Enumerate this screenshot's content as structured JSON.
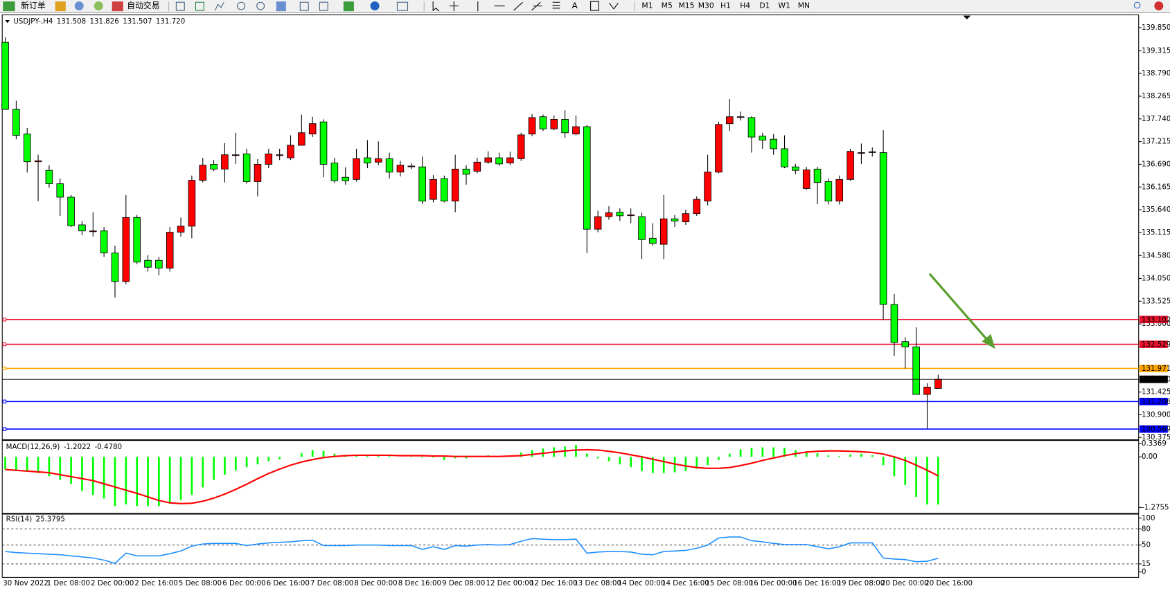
{
  "toolbar": {
    "new_order": "新订单",
    "auto_trading": "自动交易",
    "text_tool": "A",
    "timeframes": [
      "M1",
      "M5",
      "M15",
      "M30",
      "H1",
      "H4",
      "D1",
      "W1",
      "MN"
    ]
  },
  "chart_data": [
    {
      "type": "candlestick",
      "title": "USDJPY-,H4",
      "categories": [
        "30 Nov 2022",
        null,
        null,
        null,
        "1 Dec 08:00",
        null,
        null,
        null,
        "2 Dec 00:00",
        null,
        null,
        null,
        "2 Dec 16:00",
        null,
        null,
        null,
        "5 Dec 08:00",
        null,
        null,
        null,
        "6 Dec 00:00",
        null,
        null,
        null,
        "6 Dec 16:00",
        null,
        null,
        null,
        "7 Dec 08:00",
        null,
        null,
        null,
        "8 Dec 00:00",
        null,
        null,
        null,
        "8 Dec 16:00",
        null,
        null,
        null,
        "9 Dec 08:00",
        null,
        null,
        null,
        "12 Dec 00:00",
        null,
        null,
        null,
        "12 Dec 16:00",
        null,
        null,
        null,
        "13 Dec 08:00",
        null,
        null,
        null,
        "14 Dec 00:00",
        null,
        null,
        null,
        "14 Dec 16:00",
        null,
        null,
        null,
        "15 Dec 08:00",
        null,
        null,
        null,
        "16 Dec 00:00",
        null,
        null,
        null,
        "16 Dec 16:00",
        null,
        null,
        null,
        "19 Dec 08:00",
        null,
        null,
        null,
        "20 Dec 00:00",
        null,
        null,
        null,
        "20 Dec 16:00",
        null
      ],
      "open": [
        139.51,
        137.96,
        137.39,
        136.75,
        136.55,
        136.24,
        135.93,
        135.29,
        135.15,
        135.15,
        134.64,
        133.98,
        135.46,
        134.47,
        134.47,
        134.29,
        135.12,
        135.26,
        136.32,
        136.69,
        136.58,
        136.91,
        136.93,
        136.29,
        136.69,
        136.91,
        136.84,
        137.13,
        137.39,
        137.67,
        136.72,
        136.39,
        136.34,
        136.84,
        136.74,
        136.82,
        136.51,
        136.65,
        136.63,
        135.88,
        136.36,
        135.84,
        136.58,
        136.53,
        136.74,
        136.84,
        136.72,
        136.82,
        137.39,
        137.79,
        137.51,
        137.73,
        137.39,
        137.56,
        135.19,
        135.48,
        135.58,
        135.52,
        135.48,
        134.98,
        134.84,
        135.43,
        135.36,
        135.55,
        135.84,
        136.51,
        137.63,
        137.79,
        137.77,
        137.34,
        137.27,
        137.05,
        136.63,
        136.13,
        136.58,
        136.29,
        135.84,
        136.34,
        136.96,
        136.98,
        136.96,
        133.45,
        132.59,
        132.47,
        131.37,
        131.508
      ],
      "high": [
        139.63,
        138.16,
        137.53,
        136.91,
        136.67,
        136.36,
        135.98,
        135.38,
        135.58,
        135.24,
        134.81,
        135.98,
        135.52,
        134.59,
        134.55,
        135.24,
        135.46,
        136.43,
        136.84,
        136.79,
        137.18,
        137.42,
        137.05,
        136.81,
        137.05,
        137.05,
        137.36,
        137.84,
        137.79,
        137.73,
        136.84,
        136.62,
        137.05,
        137.25,
        137.22,
        136.96,
        136.77,
        136.72,
        136.87,
        136.44,
        136.43,
        136.91,
        136.67,
        136.84,
        136.99,
        136.96,
        136.98,
        137.42,
        137.85,
        137.84,
        137.82,
        137.94,
        137.82,
        137.6,
        135.62,
        135.72,
        135.67,
        135.67,
        135.57,
        135.33,
        135.98,
        135.52,
        135.64,
        135.95,
        136.91,
        137.67,
        138.2,
        137.91,
        137.8,
        137.42,
        137.39,
        137.36,
        136.7,
        136.63,
        136.63,
        136.36,
        136.43,
        137.05,
        137.17,
        137.08,
        137.48,
        133.69,
        132.69,
        132.92,
        131.63,
        131.826
      ],
      "low": [
        137.96,
        137.27,
        136.5,
        135.84,
        136.15,
        135.5,
        135.24,
        135.05,
        135.02,
        134.55,
        133.61,
        133.92,
        134.38,
        134.21,
        134.12,
        134.21,
        135.02,
        134.98,
        136.27,
        136.53,
        136.27,
        136.7,
        136.24,
        135.95,
        136.6,
        136.79,
        136.79,
        137.12,
        137.32,
        136.39,
        136.26,
        136.22,
        136.29,
        136.6,
        136.67,
        136.36,
        136.41,
        136.58,
        135.77,
        135.81,
        135.81,
        135.58,
        136.22,
        136.48,
        136.7,
        136.65,
        136.67,
        136.77,
        137.34,
        137.46,
        137.48,
        137.3,
        137.36,
        134.64,
        135.12,
        135.41,
        135.38,
        135.33,
        134.5,
        134.81,
        134.5,
        135.24,
        135.29,
        135.5,
        135.74,
        136.48,
        137.46,
        137.7,
        136.96,
        137.05,
        136.91,
        136.6,
        136.46,
        136.1,
        135.77,
        135.76,
        135.76,
        136.31,
        136.7,
        136.87,
        133.09,
        132.26,
        131.97,
        131.37,
        130.58,
        131.507
      ],
      "close": [
        137.96,
        137.36,
        136.75,
        136.77,
        136.24,
        135.93,
        135.27,
        135.15,
        135.15,
        134.64,
        133.98,
        135.46,
        134.43,
        134.31,
        134.29,
        135.12,
        135.26,
        136.32,
        136.67,
        136.58,
        136.91,
        136.91,
        136.29,
        136.69,
        136.93,
        136.91,
        137.13,
        137.42,
        137.63,
        136.69,
        136.31,
        136.31,
        136.82,
        136.72,
        136.82,
        136.51,
        136.67,
        136.65,
        135.84,
        136.34,
        135.84,
        136.58,
        136.46,
        136.74,
        136.84,
        136.7,
        136.84,
        137.37,
        137.77,
        137.51,
        137.73,
        137.42,
        137.56,
        135.19,
        135.48,
        135.57,
        135.5,
        135.52,
        134.95,
        134.86,
        135.43,
        135.38,
        135.55,
        135.88,
        136.51,
        137.61,
        137.79,
        137.79,
        137.32,
        137.25,
        137.05,
        136.63,
        136.55,
        136.56,
        136.27,
        135.84,
        136.34,
        136.99,
        136.96,
        136.98,
        133.45,
        132.57,
        132.47,
        131.37,
        131.54,
        131.72
      ],
      "last_labels": [
        "131.508",
        "131.826",
        "131.507",
        "131.720"
      ],
      "up_color": "#ff0000",
      "down_color": "#00ff00",
      "ylim": [
        130.34,
        140.11
      ],
      "yticks": [
        {
          "value": 139.85,
          "label": "139.850"
        },
        139.315,
        {
          "value": 138.79,
          "label": "138.790"
        },
        138.265,
        {
          "value": 137.74,
          "label": "137.740"
        },
        137.215,
        {
          "value": 136.69,
          "label": "136.690"
        },
        136.165,
        {
          "value": 135.64,
          "label": "135.640"
        },
        135.115,
        {
          "value": 134.58,
          "label": "134.580"
        },
        {
          "value": 134.05,
          "label": "134.050"
        },
        133.525,
        {
          "value": 133,
          "label": "133.000"
        },
        131.425,
        {
          "value": 130.9,
          "label": "130.900"
        },
        130.375
      ],
      "levels": [
        {
          "value": 133.102,
          "color": "#e8112d"
        },
        {
          "value": 132.529,
          "color": "#e8112d"
        },
        {
          "value": 131.971,
          "color": "#ffa500"
        },
        {
          "value": 131.206,
          "color": "#0000ff"
        },
        {
          "value": 130.569,
          "color": "#0000ff"
        }
      ]
    },
    {
      "type": "macd",
      "title": "MACD(12,26,9)",
      "values": [
        -0.32,
        -0.34,
        -0.38,
        -0.41,
        -0.49,
        -0.58,
        -0.68,
        -0.86,
        -0.96,
        -1.05,
        -1.24,
        -1.2,
        -1.24,
        -1.24,
        -1.24,
        -1.18,
        -1.09,
        -0.96,
        -0.77,
        -0.58,
        -0.45,
        -0.34,
        -0.26,
        -0.19,
        -0.11,
        -0.06,
        0,
        0.09,
        0.17,
        0.15,
        0.08,
        0.04,
        0.04,
        0.06,
        0.04,
        0.02,
        0,
        0.02,
        -0.02,
        -0.02,
        -0.08,
        -0.04,
        -0.04,
        0,
        0.04,
        0.02,
        0.04,
        0.11,
        0.17,
        0.21,
        0.24,
        0.26,
        0.3,
        0.08,
        -0.04,
        -0.11,
        -0.19,
        -0.26,
        -0.36,
        -0.41,
        -0.41,
        -0.39,
        -0.36,
        -0.3,
        -0.21,
        -0.08,
        0.08,
        0.19,
        0.23,
        0.24,
        0.24,
        0.23,
        0.17,
        0.13,
        0.09,
        0.04,
        0.02,
        0.06,
        0.08,
        0.04,
        -0.21,
        -0.49,
        -0.71,
        -1.01,
        -1.2,
        -1.2022
      ],
      "signal": [
        -0.32,
        -0.34,
        -0.36,
        -0.38,
        -0.4,
        -0.45,
        -0.5,
        -0.55,
        -0.6,
        -0.68,
        -0.76,
        -0.84,
        -0.92,
        -1.01,
        -1.1,
        -1.16,
        -1.18,
        -1.17,
        -1.12,
        -1.04,
        -0.94,
        -0.82,
        -0.69,
        -0.55,
        -0.42,
        -0.31,
        -0.21,
        -0.13,
        -0.07,
        -0.02,
        0.01,
        0.03,
        0.04,
        0.04,
        0.04,
        0.04,
        0.03,
        0.03,
        0.03,
        0.02,
        0.02,
        0.01,
        0.01,
        0.01,
        0.01,
        0.01,
        0.02,
        0.03,
        0.06,
        0.09,
        0.12,
        0.15,
        0.17,
        0.18,
        0.17,
        0.14,
        0.1,
        0.05,
        0,
        -0.06,
        -0.12,
        -0.18,
        -0.23,
        -0.27,
        -0.29,
        -0.29,
        -0.27,
        -0.22,
        -0.16,
        -0.09,
        -0.03,
        0.03,
        0.08,
        0.12,
        0.14,
        0.15,
        0.15,
        0.14,
        0.13,
        0.11,
        0.07,
        0,
        -0.09,
        -0.21,
        -0.34,
        -0.478
      ],
      "signal_label": "-0.4780",
      "color": "#00ff00",
      "signal_color": "#ff0000",
      "ylim": [
        -1.426,
        0.394
      ],
      "yticks": [
        0.3369,
        {
          "value": 0,
          "label": "0.00"
        },
        -1.2755
      ]
    },
    {
      "type": "line",
      "title": "RSI(14)",
      "values": [
        38,
        36,
        35,
        34,
        33,
        32,
        30,
        28,
        26,
        22,
        16,
        35,
        30,
        30,
        30,
        34,
        39,
        48,
        52,
        53,
        53,
        53,
        49,
        52,
        54,
        55,
        56,
        58,
        59,
        49,
        49,
        49,
        50,
        50,
        50,
        49,
        49,
        49,
        42,
        47,
        42,
        49,
        48,
        50,
        51,
        50,
        51,
        57,
        62,
        61,
        60,
        60,
        61,
        35,
        37,
        38,
        38,
        37,
        33,
        32,
        38,
        39,
        40,
        44,
        50,
        63,
        65,
        65,
        58,
        56,
        53,
        51,
        51,
        51,
        47,
        43,
        47,
        54,
        54,
        54,
        26,
        24,
        23,
        19,
        20,
        25.3795
      ],
      "color": "#1e90ff",
      "ylim": [
        -10,
        106
      ],
      "yticks": [
        100,
        80,
        50,
        15,
        0
      ],
      "levels": [
        80,
        50,
        15
      ]
    }
  ]
}
